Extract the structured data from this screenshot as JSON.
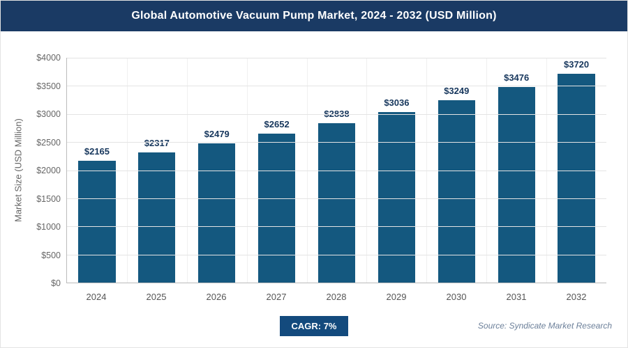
{
  "header": {
    "title": "Global Automotive Vacuum Pump Market, 2024 - 2032 (USD Million)"
  },
  "chart_data": {
    "type": "bar",
    "title": "Global Automotive Vacuum Pump Market, 2024 - 2032 (USD Million)",
    "categories": [
      "2024",
      "2025",
      "2026",
      "2027",
      "2028",
      "2029",
      "2030",
      "2031",
      "2032"
    ],
    "values": [
      2165,
      2317,
      2479,
      2652,
      2838,
      3036,
      3249,
      3476,
      3720
    ],
    "data_labels": [
      "$2165",
      "$2317",
      "$2479",
      "$2652",
      "$2838",
      "$3036",
      "$3249",
      "$3476",
      "$3720"
    ],
    "xlabel": "",
    "ylabel": "Market Size (USD Million)",
    "ylim": [
      0,
      4000
    ],
    "yticks": [
      0,
      500,
      1000,
      1500,
      2000,
      2500,
      3000,
      3500,
      4000
    ],
    "ytick_labels": [
      "$0",
      "$500",
      "$1000",
      "$1500",
      "$2000",
      "$2500",
      "$3000",
      "$3500",
      "$4000"
    ],
    "grid": true,
    "legend": false
  },
  "footer": {
    "cagr_label": "CAGR: 7%",
    "source": "Source: Syndicate Market Research"
  },
  "colors": {
    "header_bg": "#1a3a64",
    "bar": "#14587f",
    "value_label": "#16365c",
    "cagr_bg": "#134a7d",
    "source_text": "#6b7f99"
  }
}
